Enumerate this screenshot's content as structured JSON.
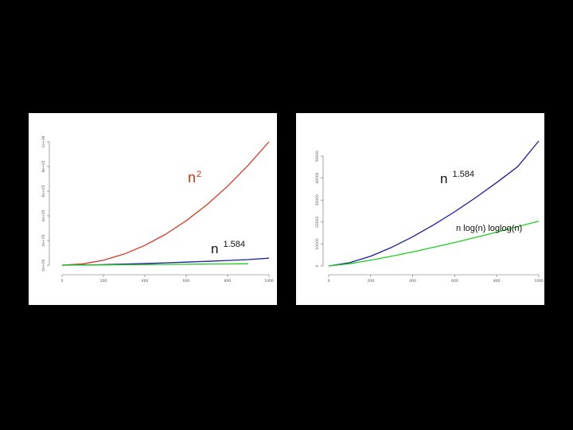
{
  "chart_data": [
    {
      "type": "line",
      "title": "",
      "xlabel": "",
      "ylabel": "",
      "xlim": [
        0,
        1000
      ],
      "ylim": [
        0,
        1000000
      ],
      "x_ticks": [
        0,
        200,
        400,
        600,
        800,
        1000
      ],
      "y_ticks": [
        0,
        200000,
        400000,
        600000,
        800000,
        1000000
      ],
      "x_tick_labels": [
        "0",
        "200",
        "400",
        "600",
        "800",
        "1000"
      ],
      "y_tick_labels": [
        "0e+00",
        "2e+05",
        "4e+05",
        "6e+05",
        "8e+05",
        "1e+06"
      ],
      "grid": false,
      "series": [
        {
          "color": "#d03a28",
          "x": [
            0,
            100,
            200,
            300,
            400,
            500,
            600,
            700,
            800,
            900,
            1000
          ],
          "values": [
            0,
            10000,
            40000,
            90000,
            160000,
            250000,
            360000,
            490000,
            640000,
            810000,
            1000000
          ]
        },
        {
          "color": "#1c1c9e",
          "x": [
            0,
            100,
            200,
            300,
            400,
            500,
            600,
            700,
            800,
            900,
            1000
          ],
          "values": [
            0,
            1482,
            4437,
            8481,
            13280,
            18732,
            24680,
            31110,
            37970,
            45230,
            56890
          ]
        },
        {
          "color": "#22cc22",
          "x": [
            0,
            100,
            200,
            300,
            400,
            500,
            600,
            700,
            800,
            900
          ],
          "values": [
            0,
            700,
            1800,
            3100,
            4500,
            5800,
            7300,
            8700,
            10200,
            11600
          ]
        }
      ],
      "annotations": [
        {
          "text": "n",
          "sup": "2",
          "color": "#cc3311"
        },
        {
          "text": "n",
          "sup": "1.584",
          "color": "#111111"
        }
      ]
    },
    {
      "type": "line",
      "title": "",
      "xlabel": "",
      "ylabel": "",
      "xlim": [
        0,
        1000
      ],
      "ylim": [
        0,
        50000
      ],
      "x_ticks": [
        0,
        200,
        400,
        600,
        800,
        1000
      ],
      "y_ticks": [
        0,
        10000,
        20000,
        30000,
        40000,
        50000
      ],
      "x_tick_labels": [
        "0",
        "200",
        "400",
        "600",
        "800",
        "1000"
      ],
      "y_tick_labels": [
        "0",
        "10000",
        "20000",
        "30000",
        "40000",
        "50000"
      ],
      "grid": false,
      "series": [
        {
          "color": "#1c1c9e",
          "x": [
            0,
            100,
            200,
            300,
            400,
            500,
            600,
            700,
            800,
            900,
            1000
          ],
          "values": [
            0,
            1482,
            4437,
            8481,
            13280,
            18732,
            24680,
            31110,
            37970,
            45230,
            56890
          ]
        },
        {
          "color": "#22cc22",
          "x": [
            0,
            100,
            200,
            300,
            400,
            500,
            600,
            700,
            800,
            900,
            1000
          ],
          "values": [
            0,
            1020,
            2620,
            4450,
            6400,
            8500,
            10700,
            13000,
            15400,
            17900,
            20400
          ]
        }
      ],
      "annotations": [
        {
          "text": "n",
          "sup": "1.584",
          "color": "#111111"
        },
        {
          "text": "n log(n) loglog(n)",
          "color": "#111111"
        }
      ]
    }
  ]
}
